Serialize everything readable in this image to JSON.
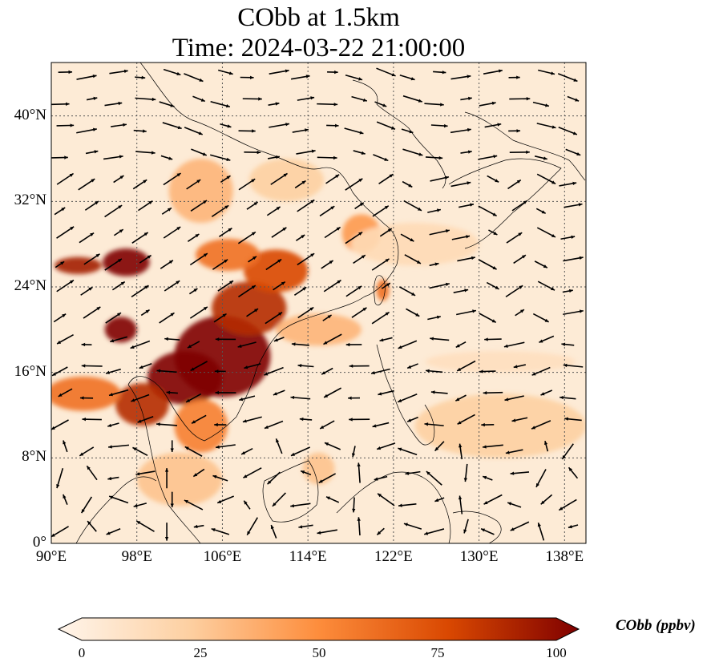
{
  "title": {
    "line1": "CObb at 1.5km",
    "line2": "Time: 2024-03-22 21:00:00"
  },
  "map": {
    "extent": {
      "lon_min": 90,
      "lon_max": 140,
      "lat_min": 0,
      "lat_max": 45
    },
    "lon_ticks": [
      {
        "lon": 90,
        "label": "90°E"
      },
      {
        "lon": 98,
        "label": "98°E"
      },
      {
        "lon": 106,
        "label": "106°E"
      },
      {
        "lon": 114,
        "label": "114°E"
      },
      {
        "lon": 122,
        "label": "122°E"
      },
      {
        "lon": 130,
        "label": "130°E"
      },
      {
        "lon": 138,
        "label": "138°E"
      }
    ],
    "lat_ticks": [
      {
        "lat": 0,
        "label": "0°"
      },
      {
        "lat": 8,
        "label": "8°N"
      },
      {
        "lat": 16,
        "label": "16°N"
      },
      {
        "lat": 24,
        "label": "24°N"
      },
      {
        "lat": 32,
        "label": "32°N"
      },
      {
        "lat": 40,
        "label": "40°N"
      }
    ],
    "gridlines": true,
    "field_variable": "CObb",
    "field_units": "ppbv",
    "vectors": "wind"
  },
  "colorbar": {
    "label": "CObb (ppbv)",
    "min": 0,
    "max": 100,
    "extend": "both",
    "ticks": [
      {
        "value": 0,
        "label": "0"
      },
      {
        "value": 25,
        "label": "25"
      },
      {
        "value": 50,
        "label": "50"
      },
      {
        "value": 75,
        "label": "75"
      },
      {
        "value": 100,
        "label": "100"
      }
    ],
    "colors": [
      "#fff5eb",
      "#fdd0a2",
      "#fd8d3c",
      "#d94801",
      "#7f0000"
    ]
  },
  "plumes": [
    {
      "lon": 106,
      "lat": 17.5,
      "slon": 4.5,
      "slat": 3.8,
      "v": 100
    },
    {
      "lon": 102.5,
      "lat": 15.5,
      "slon": 3.5,
      "slat": 2.5,
      "v": 100
    },
    {
      "lon": 98.5,
      "lat": 13,
      "slon": 2.5,
      "slat": 2.0,
      "v": 85
    },
    {
      "lon": 96.5,
      "lat": 20,
      "slon": 1.5,
      "slat": 1.2,
      "v": 100
    },
    {
      "lon": 97,
      "lat": 26.3,
      "slon": 2.2,
      "slat": 1.3,
      "v": 100
    },
    {
      "lon": 92.5,
      "lat": 26,
      "slon": 2.2,
      "slat": 0.8,
      "v": 90
    },
    {
      "lon": 108.5,
      "lat": 22,
      "slon": 3.5,
      "slat": 2.5,
      "v": 85
    },
    {
      "lon": 111,
      "lat": 25.5,
      "slon": 3.0,
      "slat": 2.0,
      "v": 75
    },
    {
      "lon": 106.5,
      "lat": 27,
      "slon": 3.0,
      "slat": 1.5,
      "v": 60
    },
    {
      "lon": 93,
      "lat": 14,
      "slon": 3.5,
      "slat": 1.6,
      "v": 60
    },
    {
      "lon": 104,
      "lat": 11,
      "slon": 2.5,
      "slat": 2.5,
      "v": 55
    },
    {
      "lon": 119,
      "lat": 29,
      "slon": 1.8,
      "slat": 1.8,
      "v": 45
    },
    {
      "lon": 121,
      "lat": 23.7,
      "slon": 0.6,
      "slat": 1.0,
      "v": 60
    },
    {
      "lon": 104,
      "lat": 33,
      "slon": 3.0,
      "slat": 3.0,
      "v": 35
    },
    {
      "lon": 115,
      "lat": 20,
      "slon": 4.0,
      "slat": 1.5,
      "v": 35
    },
    {
      "lon": 102,
      "lat": 6,
      "slon": 4.0,
      "slat": 2.5,
      "v": 30
    },
    {
      "lon": 112,
      "lat": 34,
      "slon": 3.5,
      "slat": 2.0,
      "v": 25
    },
    {
      "lon": 124,
      "lat": 28,
      "slon": 6.0,
      "slat": 2.0,
      "v": 18
    },
    {
      "lon": 132,
      "lat": 11,
      "slon": 8.0,
      "slat": 3.0,
      "v": 25
    },
    {
      "lon": 132,
      "lat": 17,
      "slon": 7.0,
      "slat": 1.0,
      "v": 15
    },
    {
      "lon": 115,
      "lat": 7,
      "slon": 1.5,
      "slat": 1.5,
      "v": 30
    }
  ]
}
